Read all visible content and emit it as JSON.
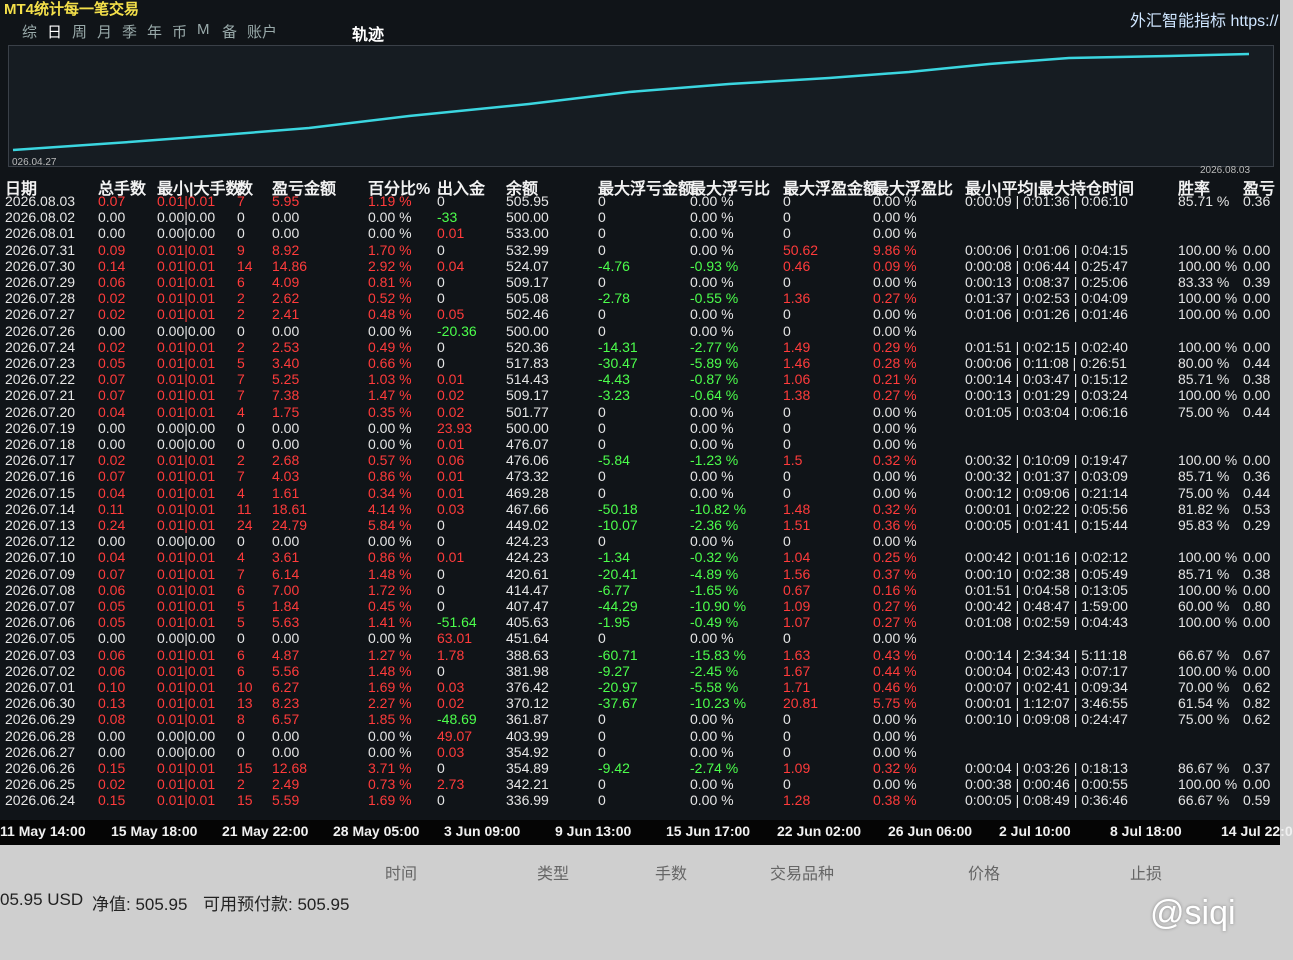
{
  "header": {
    "title": "MT4统计每一笔交易",
    "tabs": [
      "综",
      "日",
      "周",
      "月",
      "季",
      "年",
      "币",
      "M",
      "备",
      "账户"
    ],
    "track": "轨迹",
    "brand": "外汇智能指标 https://"
  },
  "curve": {
    "start": "026.04.27",
    "end": "2026.08.03"
  },
  "table": {
    "columns": [
      "日期",
      "总手数",
      "最小|大手数",
      "数",
      "盈亏金额",
      "百分比%",
      "出入金",
      "余额",
      "最大浮亏金额",
      "最大浮亏比",
      "最大浮盈金额",
      "最大浮盈比",
      "最小|平均|最大持仓时间",
      "胜率",
      "盈亏"
    ],
    "rows": [
      [
        "2026.08.03",
        "0.07",
        "0.01|0.01",
        "7",
        "5.95",
        "1.19 %",
        "0",
        "505.95",
        "0",
        "0.00 %",
        "0",
        "0.00 %",
        "0:00:09 | 0:01:36 | 0:06:10",
        "85.71 %",
        "0.36"
      ],
      [
        "2026.08.02",
        "0.00",
        "0.00|0.00",
        "0",
        "0.00",
        "0.00 %",
        "-33",
        "500.00",
        "0",
        "0.00 %",
        "0",
        "0.00 %"
      ],
      [
        "2026.08.01",
        "0.00",
        "0.00|0.00",
        "0",
        "0.00",
        "0.00 %",
        "0.01",
        "533.00",
        "0",
        "0.00 %",
        "0",
        "0.00 %"
      ],
      [
        "2026.07.31",
        "0.09",
        "0.01|0.01",
        "9",
        "8.92",
        "1.70 %",
        "0",
        "532.99",
        "0",
        "0.00 %",
        "50.62",
        "9.86 %",
        "0:00:06 | 0:01:06 | 0:04:15",
        "100.00 %",
        "0.00"
      ],
      [
        "2026.07.30",
        "0.14",
        "0.01|0.01",
        "14",
        "14.86",
        "2.92 %",
        "0.04",
        "524.07",
        "-4.76",
        "-0.93 %",
        "0.46",
        "0.09 %",
        "0:00:08 | 0:06:44 | 0:25:47",
        "100.00 %",
        "0.00"
      ],
      [
        "2026.07.29",
        "0.06",
        "0.01|0.01",
        "6",
        "4.09",
        "0.81 %",
        "0",
        "509.17",
        "0",
        "0.00 %",
        "0",
        "0.00 %",
        "0:00:13 | 0:08:37 | 0:25:06",
        "83.33 %",
        "0.39"
      ],
      [
        "2026.07.28",
        "0.02",
        "0.01|0.01",
        "2",
        "2.62",
        "0.52 %",
        "0",
        "505.08",
        "-2.78",
        "-0.55 %",
        "1.36",
        "0.27 %",
        "0:01:37 | 0:02:53 | 0:04:09",
        "100.00 %",
        "0.00"
      ],
      [
        "2026.07.27",
        "0.02",
        "0.01|0.01",
        "2",
        "2.41",
        "0.48 %",
        "0.05",
        "502.46",
        "0",
        "0.00 %",
        "0",
        "0.00 %",
        "0:01:06 | 0:01:26 | 0:01:46",
        "100.00 %",
        "0.00"
      ],
      [
        "2026.07.26",
        "0.00",
        "0.00|0.00",
        "0",
        "0.00",
        "0.00 %",
        "-20.36",
        "500.00",
        "0",
        "0.00 %",
        "0",
        "0.00 %"
      ],
      [
        "2026.07.24",
        "0.02",
        "0.01|0.01",
        "2",
        "2.53",
        "0.49 %",
        "0",
        "520.36",
        "-14.31",
        "-2.77 %",
        "1.49",
        "0.29 %",
        "0:01:51 | 0:02:15 | 0:02:40",
        "100.00 %",
        "0.00"
      ],
      [
        "2026.07.23",
        "0.05",
        "0.01|0.01",
        "5",
        "3.40",
        "0.66 %",
        "0",
        "517.83",
        "-30.47",
        "-5.89 %",
        "1.46",
        "0.28 %",
        "0:00:06 | 0:11:08 | 0:26:51",
        "80.00 %",
        "0.44"
      ],
      [
        "2026.07.22",
        "0.07",
        "0.01|0.01",
        "7",
        "5.25",
        "1.03 %",
        "0.01",
        "514.43",
        "-4.43",
        "-0.87 %",
        "1.06",
        "0.21 %",
        "0:00:14 | 0:03:47 | 0:15:12",
        "85.71 %",
        "0.38"
      ],
      [
        "2026.07.21",
        "0.07",
        "0.01|0.01",
        "7",
        "7.38",
        "1.47 %",
        "0.02",
        "509.17",
        "-3.23",
        "-0.64 %",
        "1.38",
        "0.27 %",
        "0:00:13 | 0:01:29 | 0:03:24",
        "100.00 %",
        "0.00"
      ],
      [
        "2026.07.20",
        "0.04",
        "0.01|0.01",
        "4",
        "1.75",
        "0.35 %",
        "0.02",
        "501.77",
        "0",
        "0.00 %",
        "0",
        "0.00 %",
        "0:01:05 | 0:03:04 | 0:06:16",
        "75.00 %",
        "0.44"
      ],
      [
        "2026.07.19",
        "0.00",
        "0.00|0.00",
        "0",
        "0.00",
        "0.00 %",
        "23.93",
        "500.00",
        "0",
        "0.00 %",
        "0",
        "0.00 %"
      ],
      [
        "2026.07.18",
        "0.00",
        "0.00|0.00",
        "0",
        "0.00",
        "0.00 %",
        "0.01",
        "476.07",
        "0",
        "0.00 %",
        "0",
        "0.00 %"
      ],
      [
        "2026.07.17",
        "0.02",
        "0.01|0.01",
        "2",
        "2.68",
        "0.57 %",
        "0.06",
        "476.06",
        "-5.84",
        "-1.23 %",
        "1.5",
        "0.32 %",
        "0:00:32 | 0:10:09 | 0:19:47",
        "100.00 %",
        "0.00"
      ],
      [
        "2026.07.16",
        "0.07",
        "0.01|0.01",
        "7",
        "4.03",
        "0.86 %",
        "0.01",
        "473.32",
        "0",
        "0.00 %",
        "0",
        "0.00 %",
        "0:00:32 | 0:01:37 | 0:03:09",
        "85.71 %",
        "0.36"
      ],
      [
        "2026.07.15",
        "0.04",
        "0.01|0.01",
        "4",
        "1.61",
        "0.34 %",
        "0.01",
        "469.28",
        "0",
        "0.00 %",
        "0",
        "0.00 %",
        "0:00:12 | 0:09:06 | 0:21:14",
        "75.00 %",
        "0.44"
      ],
      [
        "2026.07.14",
        "0.11",
        "0.01|0.01",
        "11",
        "18.61",
        "4.14 %",
        "0.03",
        "467.66",
        "-50.18",
        "-10.82 %",
        "1.48",
        "0.32 %",
        "0:00:01 | 0:02:22 | 0:05:56",
        "81.82 %",
        "0.53"
      ],
      [
        "2026.07.13",
        "0.24",
        "0.01|0.01",
        "24",
        "24.79",
        "5.84 %",
        "0",
        "449.02",
        "-10.07",
        "-2.36 %",
        "1.51",
        "0.36 %",
        "0:00:05 | 0:01:41 | 0:15:44",
        "95.83 %",
        "0.29"
      ],
      [
        "2026.07.12",
        "0.00",
        "0.00|0.00",
        "0",
        "0.00",
        "0.00 %",
        "0",
        "424.23",
        "0",
        "0.00 %",
        "0",
        "0.00 %"
      ],
      [
        "2026.07.10",
        "0.04",
        "0.01|0.01",
        "4",
        "3.61",
        "0.86 %",
        "0.01",
        "424.23",
        "-1.34",
        "-0.32 %",
        "1.04",
        "0.25 %",
        "0:00:42 | 0:01:16 | 0:02:12",
        "100.00 %",
        "0.00"
      ],
      [
        "2026.07.09",
        "0.07",
        "0.01|0.01",
        "7",
        "6.14",
        "1.48 %",
        "0",
        "420.61",
        "-20.41",
        "-4.89 %",
        "1.56",
        "0.37 %",
        "0:00:10 | 0:02:38 | 0:05:49",
        "85.71 %",
        "0.38"
      ],
      [
        "2026.07.08",
        "0.06",
        "0.01|0.01",
        "6",
        "7.00",
        "1.72 %",
        "0",
        "414.47",
        "-6.77",
        "-1.65 %",
        "0.67",
        "0.16 %",
        "0:01:51 | 0:04:58 | 0:13:05",
        "100.00 %",
        "0.00"
      ],
      [
        "2026.07.07",
        "0.05",
        "0.01|0.01",
        "5",
        "1.84",
        "0.45 %",
        "0",
        "407.47",
        "-44.29",
        "-10.90 %",
        "1.09",
        "0.27 %",
        "0:00:42 | 0:48:47 | 1:59:00",
        "60.00 %",
        "0.80"
      ],
      [
        "2026.07.06",
        "0.05",
        "0.01|0.01",
        "5",
        "5.63",
        "1.41 %",
        "-51.64",
        "405.63",
        "-1.95",
        "-0.49 %",
        "1.07",
        "0.27 %",
        "0:01:08 | 0:02:59 | 0:04:43",
        "100.00 %",
        "0.00"
      ],
      [
        "2026.07.05",
        "0.00",
        "0.00|0.00",
        "0",
        "0.00",
        "0.00 %",
        "63.01",
        "451.64",
        "0",
        "0.00 %",
        "0",
        "0.00 %"
      ],
      [
        "2026.07.03",
        "0.06",
        "0.01|0.01",
        "6",
        "4.87",
        "1.27 %",
        "1.78",
        "388.63",
        "-60.71",
        "-15.83 %",
        "1.63",
        "0.43 %",
        "0:00:14 | 2:34:34 | 5:11:18",
        "66.67 %",
        "0.67"
      ],
      [
        "2026.07.02",
        "0.06",
        "0.01|0.01",
        "6",
        "5.56",
        "1.48 %",
        "0",
        "381.98",
        "-9.27",
        "-2.45 %",
        "1.67",
        "0.44 %",
        "0:00:04 | 0:02:43 | 0:07:17",
        "100.00 %",
        "0.00"
      ],
      [
        "2026.07.01",
        "0.10",
        "0.01|0.01",
        "10",
        "6.27",
        "1.69 %",
        "0.03",
        "376.42",
        "-20.97",
        "-5.58 %",
        "1.71",
        "0.46 %",
        "0:00:07 | 0:02:41 | 0:09:34",
        "70.00 %",
        "0.62"
      ],
      [
        "2026.06.30",
        "0.13",
        "0.01|0.01",
        "13",
        "8.23",
        "2.27 %",
        "0.02",
        "370.12",
        "-37.67",
        "-10.23 %",
        "20.81",
        "5.75 %",
        "0:00:01 | 1:12:07 | 3:46:55",
        "61.54 %",
        "0.82"
      ],
      [
        "2026.06.29",
        "0.08",
        "0.01|0.01",
        "8",
        "6.57",
        "1.85 %",
        "-48.69",
        "361.87",
        "0",
        "0.00 %",
        "0",
        "0.00 %",
        "0:00:10 | 0:09:08 | 0:24:47",
        "75.00 %",
        "0.62"
      ],
      [
        "2026.06.28",
        "0.00",
        "0.00|0.00",
        "0",
        "0.00",
        "0.00 %",
        "49.07",
        "403.99",
        "0",
        "0.00 %",
        "0",
        "0.00 %"
      ],
      [
        "2026.06.27",
        "0.00",
        "0.00|0.00",
        "0",
        "0.00",
        "0.00 %",
        "0.03",
        "354.92",
        "0",
        "0.00 %",
        "0",
        "0.00 %"
      ],
      [
        "2026.06.26",
        "0.15",
        "0.01|0.01",
        "15",
        "12.68",
        "3.71 %",
        "0",
        "354.89",
        "-9.42",
        "-2.74 %",
        "1.09",
        "0.32 %",
        "0:00:04 | 0:03:26 | 0:18:13",
        "86.67 %",
        "0.37"
      ],
      [
        "2026.06.25",
        "0.02",
        "0.01|0.01",
        "2",
        "2.49",
        "0.73 %",
        "2.73",
        "342.21",
        "0",
        "0.00 %",
        "0",
        "0.00 %",
        "0:00:38 | 0:00:46 | 0:00:55",
        "100.00 %",
        "0.00"
      ],
      [
        "2026.06.24",
        "0.15",
        "0.01|0.01",
        "15",
        "5.59",
        "1.69 %",
        "0",
        "336.99",
        "0",
        "0.00 %",
        "1.28",
        "0.38 %",
        "0:00:05 | 0:08:49 | 0:36:46",
        "66.67 %",
        "0.59"
      ]
    ]
  },
  "time_axis": [
    "11 May 14:00",
    "15 May 18:00",
    "21 May 22:00",
    "28 May 05:00",
    "3 Jun 09:00",
    "9 Jun 13:00",
    "15 Jun 17:00",
    "22 Jun 02:00",
    "26 Jun 06:00",
    "2 Jul 10:00",
    "8 Jul 18:00",
    "14 Jul 22:0"
  ],
  "order_columns": [
    "时间",
    "类型",
    "手数",
    "交易品种",
    "价格",
    "止损"
  ],
  "footer": {
    "balance": "05.95 USD",
    "equity": "净值: 505.95",
    "free_margin": "可用预付款: 505.95"
  },
  "watermark": "@siqi"
}
